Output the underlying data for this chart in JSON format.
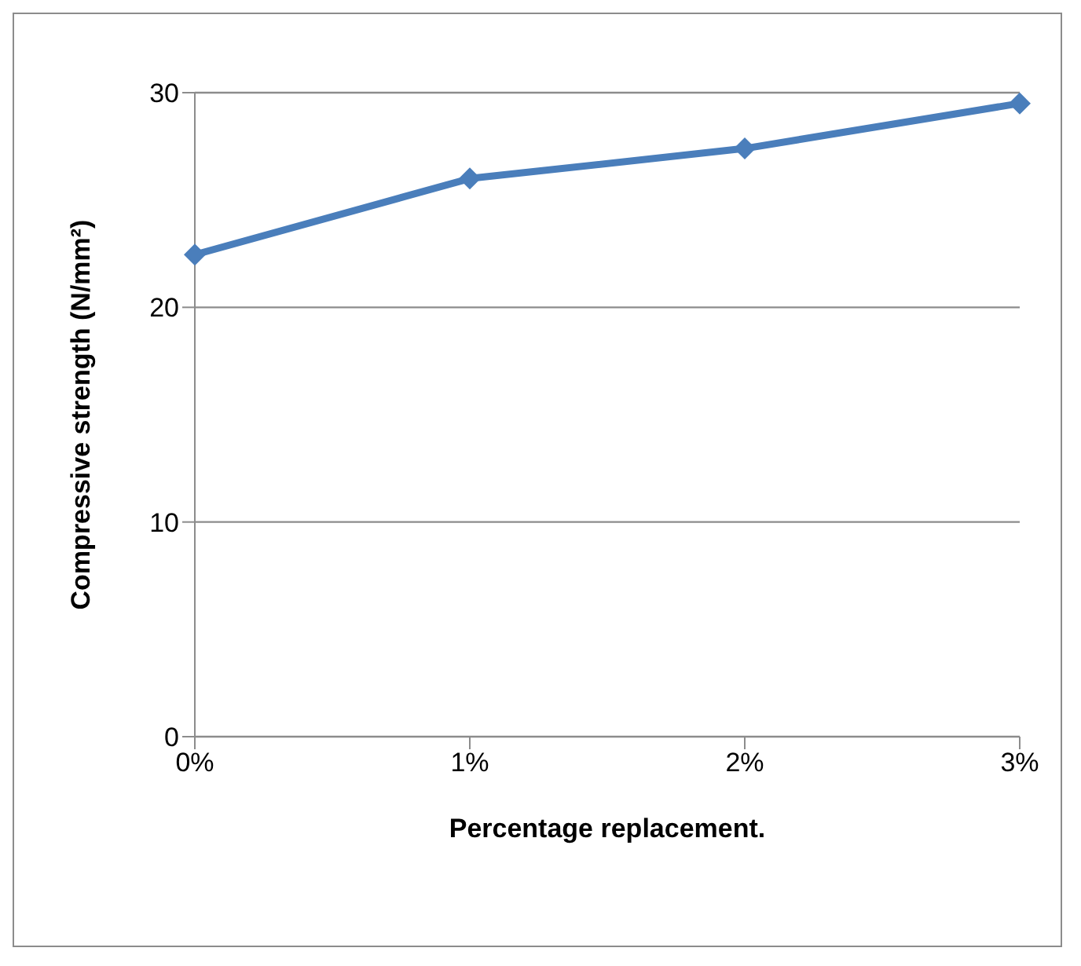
{
  "chart_data": {
    "type": "line",
    "xlabel": "Percentage replacement.",
    "ylabel": "Compressive strength (N/mm²)",
    "categories": [
      "0%",
      "1%",
      "2%",
      "3%"
    ],
    "series": [
      {
        "color": "#4a7ebb",
        "values": [
          22.45,
          26.0,
          27.4,
          29.5
        ]
      }
    ],
    "ylim": [
      0,
      30
    ],
    "yticks": [
      0,
      10,
      20,
      30
    ],
    "grid": "y",
    "legend": false,
    "marker": "diamond",
    "line_style": "solid"
  }
}
